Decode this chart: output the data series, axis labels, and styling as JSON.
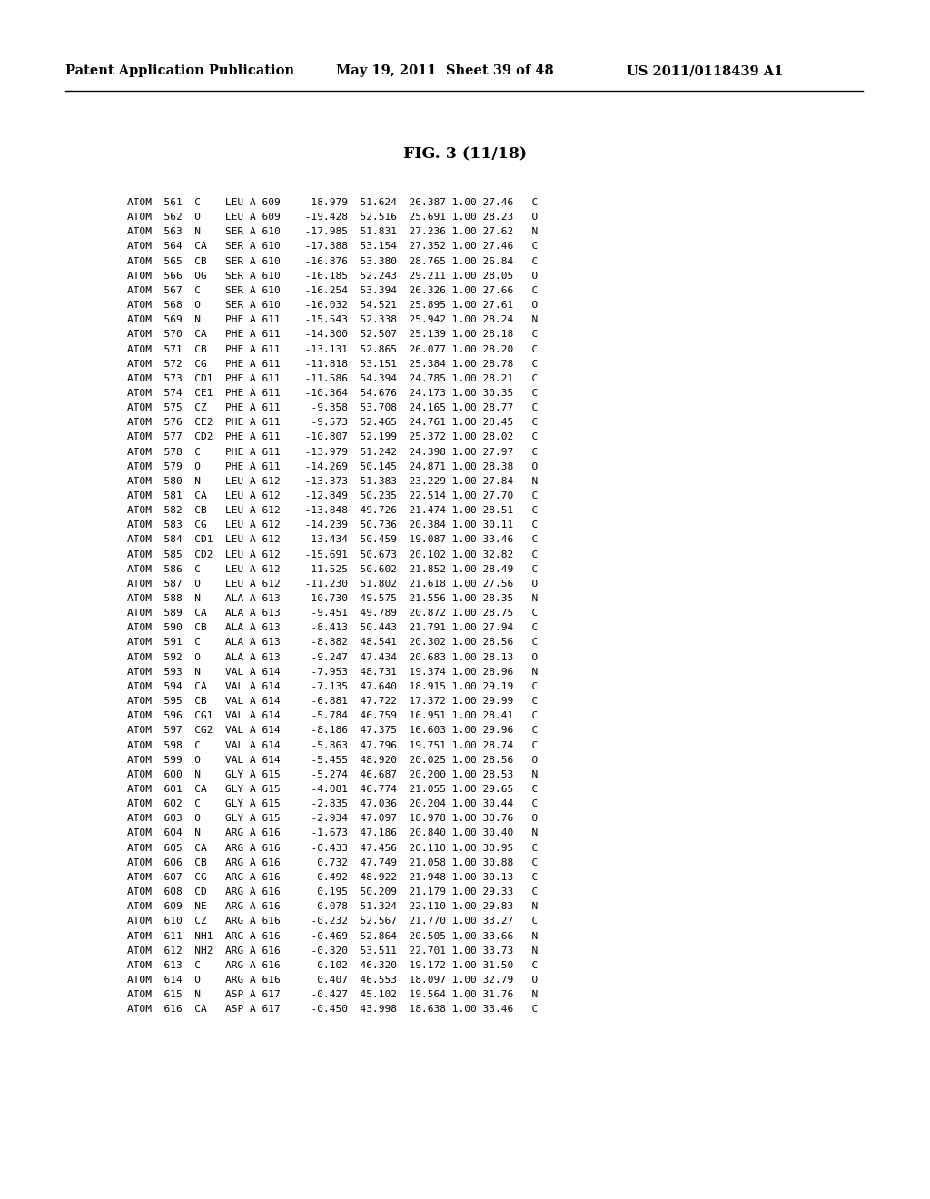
{
  "header_left": "Patent Application Publication",
  "header_center": "May 19, 2011  Sheet 39 of 48",
  "header_right": "US 2011/0118439 A1",
  "figure_title": "FIG. 3 (11/18)",
  "rows": [
    [
      "ATOM",
      "561",
      "C",
      "LEU",
      "A",
      "609",
      "-18.979",
      "51.624",
      "26.387",
      "1.00",
      "27.46",
      "C"
    ],
    [
      "ATOM",
      "562",
      "O",
      "LEU",
      "A",
      "609",
      "-19.428",
      "52.516",
      "25.691",
      "1.00",
      "28.23",
      "O"
    ],
    [
      "ATOM",
      "563",
      "N",
      "SER",
      "A",
      "610",
      "-17.985",
      "51.831",
      "27.236",
      "1.00",
      "27.62",
      "N"
    ],
    [
      "ATOM",
      "564",
      "CA",
      "SER",
      "A",
      "610",
      "-17.388",
      "53.154",
      "27.352",
      "1.00",
      "27.46",
      "C"
    ],
    [
      "ATOM",
      "565",
      "CB",
      "SER",
      "A",
      "610",
      "-16.876",
      "53.380",
      "28.765",
      "1.00",
      "26.84",
      "C"
    ],
    [
      "ATOM",
      "566",
      "OG",
      "SER",
      "A",
      "610",
      "-16.185",
      "52.243",
      "29.211",
      "1.00",
      "28.05",
      "O"
    ],
    [
      "ATOM",
      "567",
      "C",
      "SER",
      "A",
      "610",
      "-16.254",
      "53.394",
      "26.326",
      "1.00",
      "27.66",
      "C"
    ],
    [
      "ATOM",
      "568",
      "O",
      "SER",
      "A",
      "610",
      "-16.032",
      "54.521",
      "25.895",
      "1.00",
      "27.61",
      "O"
    ],
    [
      "ATOM",
      "569",
      "N",
      "PHE",
      "A",
      "611",
      "-15.543",
      "52.338",
      "25.942",
      "1.00",
      "28.24",
      "N"
    ],
    [
      "ATOM",
      "570",
      "CA",
      "PHE",
      "A",
      "611",
      "-14.300",
      "52.507",
      "25.139",
      "1.00",
      "28.18",
      "C"
    ],
    [
      "ATOM",
      "571",
      "CB",
      "PHE",
      "A",
      "611",
      "-13.131",
      "52.865",
      "26.077",
      "1.00",
      "28.20",
      "C"
    ],
    [
      "ATOM",
      "572",
      "CG",
      "PHE",
      "A",
      "611",
      "-11.818",
      "53.151",
      "25.384",
      "1.00",
      "28.78",
      "C"
    ],
    [
      "ATOM",
      "573",
      "CD1",
      "PHE",
      "A",
      "611",
      "-11.586",
      "54.394",
      "24.785",
      "1.00",
      "28.21",
      "C"
    ],
    [
      "ATOM",
      "574",
      "CE1",
      "PHE",
      "A",
      "611",
      "-10.364",
      "54.676",
      "24.173",
      "1.00",
      "30.35",
      "C"
    ],
    [
      "ATOM",
      "575",
      "CZ",
      "PHE",
      "A",
      "611",
      "-9.358",
      "53.708",
      "24.165",
      "1.00",
      "28.77",
      "C"
    ],
    [
      "ATOM",
      "576",
      "CE2",
      "PHE",
      "A",
      "611",
      "-9.573",
      "52.465",
      "24.761",
      "1.00",
      "28.45",
      "C"
    ],
    [
      "ATOM",
      "577",
      "CD2",
      "PHE",
      "A",
      "611",
      "-10.807",
      "52.199",
      "25.372",
      "1.00",
      "28.02",
      "C"
    ],
    [
      "ATOM",
      "578",
      "C",
      "PHE",
      "A",
      "611",
      "-13.979",
      "51.242",
      "24.398",
      "1.00",
      "27.97",
      "C"
    ],
    [
      "ATOM",
      "579",
      "O",
      "PHE",
      "A",
      "611",
      "-14.269",
      "50.145",
      "24.871",
      "1.00",
      "28.38",
      "O"
    ],
    [
      "ATOM",
      "580",
      "N",
      "LEU",
      "A",
      "612",
      "-13.373",
      "51.383",
      "23.229",
      "1.00",
      "27.84",
      "N"
    ],
    [
      "ATOM",
      "581",
      "CA",
      "LEU",
      "A",
      "612",
      "-12.849",
      "50.235",
      "22.514",
      "1.00",
      "27.70",
      "C"
    ],
    [
      "ATOM",
      "582",
      "CB",
      "LEU",
      "A",
      "612",
      "-13.848",
      "49.726",
      "21.474",
      "1.00",
      "28.51",
      "C"
    ],
    [
      "ATOM",
      "583",
      "CG",
      "LEU",
      "A",
      "612",
      "-14.239",
      "50.736",
      "20.384",
      "1.00",
      "30.11",
      "C"
    ],
    [
      "ATOM",
      "584",
      "CD1",
      "LEU",
      "A",
      "612",
      "-13.434",
      "50.459",
      "19.087",
      "1.00",
      "33.46",
      "C"
    ],
    [
      "ATOM",
      "585",
      "CD2",
      "LEU",
      "A",
      "612",
      "-15.691",
      "50.673",
      "20.102",
      "1.00",
      "32.82",
      "C"
    ],
    [
      "ATOM",
      "586",
      "C",
      "LEU",
      "A",
      "612",
      "-11.525",
      "50.602",
      "21.852",
      "1.00",
      "28.49",
      "C"
    ],
    [
      "ATOM",
      "587",
      "O",
      "LEU",
      "A",
      "612",
      "-11.230",
      "51.802",
      "21.618",
      "1.00",
      "27.56",
      "O"
    ],
    [
      "ATOM",
      "588",
      "N",
      "ALA",
      "A",
      "613",
      "-10.730",
      "49.575",
      "21.556",
      "1.00",
      "28.35",
      "N"
    ],
    [
      "ATOM",
      "589",
      "CA",
      "ALA",
      "A",
      "613",
      "-9.451",
      "49.789",
      "20.872",
      "1.00",
      "28.75",
      "C"
    ],
    [
      "ATOM",
      "590",
      "CB",
      "ALA",
      "A",
      "613",
      "-8.413",
      "50.443",
      "21.791",
      "1.00",
      "27.94",
      "C"
    ],
    [
      "ATOM",
      "591",
      "C",
      "ALA",
      "A",
      "613",
      "-8.882",
      "48.541",
      "20.302",
      "1.00",
      "28.56",
      "C"
    ],
    [
      "ATOM",
      "592",
      "O",
      "ALA",
      "A",
      "613",
      "-9.247",
      "47.434",
      "20.683",
      "1.00",
      "28.13",
      "O"
    ],
    [
      "ATOM",
      "593",
      "N",
      "VAL",
      "A",
      "614",
      "-7.953",
      "48.731",
      "19.374",
      "1.00",
      "28.96",
      "N"
    ],
    [
      "ATOM",
      "594",
      "CA",
      "VAL",
      "A",
      "614",
      "-7.135",
      "47.640",
      "18.915",
      "1.00",
      "29.19",
      "C"
    ],
    [
      "ATOM",
      "595",
      "CB",
      "VAL",
      "A",
      "614",
      "-6.881",
      "47.722",
      "17.372",
      "1.00",
      "29.99",
      "C"
    ],
    [
      "ATOM",
      "596",
      "CG1",
      "VAL",
      "A",
      "614",
      "-5.784",
      "46.759",
      "16.951",
      "1.00",
      "28.41",
      "C"
    ],
    [
      "ATOM",
      "597",
      "CG2",
      "VAL",
      "A",
      "614",
      "-8.186",
      "47.375",
      "16.603",
      "1.00",
      "29.96",
      "C"
    ],
    [
      "ATOM",
      "598",
      "C",
      "VAL",
      "A",
      "614",
      "-5.863",
      "47.796",
      "19.751",
      "1.00",
      "28.74",
      "C"
    ],
    [
      "ATOM",
      "599",
      "O",
      "VAL",
      "A",
      "614",
      "-5.455",
      "48.920",
      "20.025",
      "1.00",
      "28.56",
      "O"
    ],
    [
      "ATOM",
      "600",
      "N",
      "GLY",
      "A",
      "615",
      "-5.274",
      "46.687",
      "20.200",
      "1.00",
      "28.53",
      "N"
    ],
    [
      "ATOM",
      "601",
      "CA",
      "GLY",
      "A",
      "615",
      "-4.081",
      "46.774",
      "21.055",
      "1.00",
      "29.65",
      "C"
    ],
    [
      "ATOM",
      "602",
      "C",
      "GLY",
      "A",
      "615",
      "-2.835",
      "47.036",
      "20.204",
      "1.00",
      "30.44",
      "C"
    ],
    [
      "ATOM",
      "603",
      "O",
      "GLY",
      "A",
      "615",
      "-2.934",
      "47.097",
      "18.978",
      "1.00",
      "30.76",
      "O"
    ],
    [
      "ATOM",
      "604",
      "N",
      "ARG",
      "A",
      "616",
      "-1.673",
      "47.186",
      "20.840",
      "1.00",
      "30.40",
      "N"
    ],
    [
      "ATOM",
      "605",
      "CA",
      "ARG",
      "A",
      "616",
      "-0.433",
      "47.456",
      "20.110",
      "1.00",
      "30.95",
      "C"
    ],
    [
      "ATOM",
      "606",
      "CB",
      "ARG",
      "A",
      "616",
      "0.732",
      "47.749",
      "21.058",
      "1.00",
      "30.88",
      "C"
    ],
    [
      "ATOM",
      "607",
      "CG",
      "ARG",
      "A",
      "616",
      "0.492",
      "48.922",
      "21.948",
      "1.00",
      "30.13",
      "C"
    ],
    [
      "ATOM",
      "608",
      "CD",
      "ARG",
      "A",
      "616",
      "0.195",
      "50.209",
      "21.179",
      "1.00",
      "29.33",
      "C"
    ],
    [
      "ATOM",
      "609",
      "NE",
      "ARG",
      "A",
      "616",
      "0.078",
      "51.324",
      "22.110",
      "1.00",
      "29.83",
      "N"
    ],
    [
      "ATOM",
      "610",
      "CZ",
      "ARG",
      "A",
      "616",
      "-0.232",
      "52.567",
      "21.770",
      "1.00",
      "33.27",
      "C"
    ],
    [
      "ATOM",
      "611",
      "NH1",
      "ARG",
      "A",
      "616",
      "-0.469",
      "52.864",
      "20.505",
      "1.00",
      "33.66",
      "N"
    ],
    [
      "ATOM",
      "612",
      "NH2",
      "ARG",
      "A",
      "616",
      "-0.320",
      "53.511",
      "22.701",
      "1.00",
      "33.73",
      "N"
    ],
    [
      "ATOM",
      "613",
      "C",
      "ARG",
      "A",
      "616",
      "-0.102",
      "46.320",
      "19.172",
      "1.00",
      "31.50",
      "C"
    ],
    [
      "ATOM",
      "614",
      "O",
      "ARG",
      "A",
      "616",
      "0.407",
      "46.553",
      "18.097",
      "1.00",
      "32.79",
      "O"
    ],
    [
      "ATOM",
      "615",
      "N",
      "ASP",
      "A",
      "617",
      "-0.427",
      "45.102",
      "19.564",
      "1.00",
      "31.76",
      "N"
    ],
    [
      "ATOM",
      "616",
      "CA",
      "ASP",
      "A",
      "617",
      "-0.450",
      "43.998",
      "18.638",
      "1.00",
      "33.46",
      "C"
    ]
  ],
  "bg_color": "#ffffff",
  "text_color": "#000000",
  "font_size": 8.0,
  "header_font_size": 10.5,
  "title_font_size": 12.5
}
